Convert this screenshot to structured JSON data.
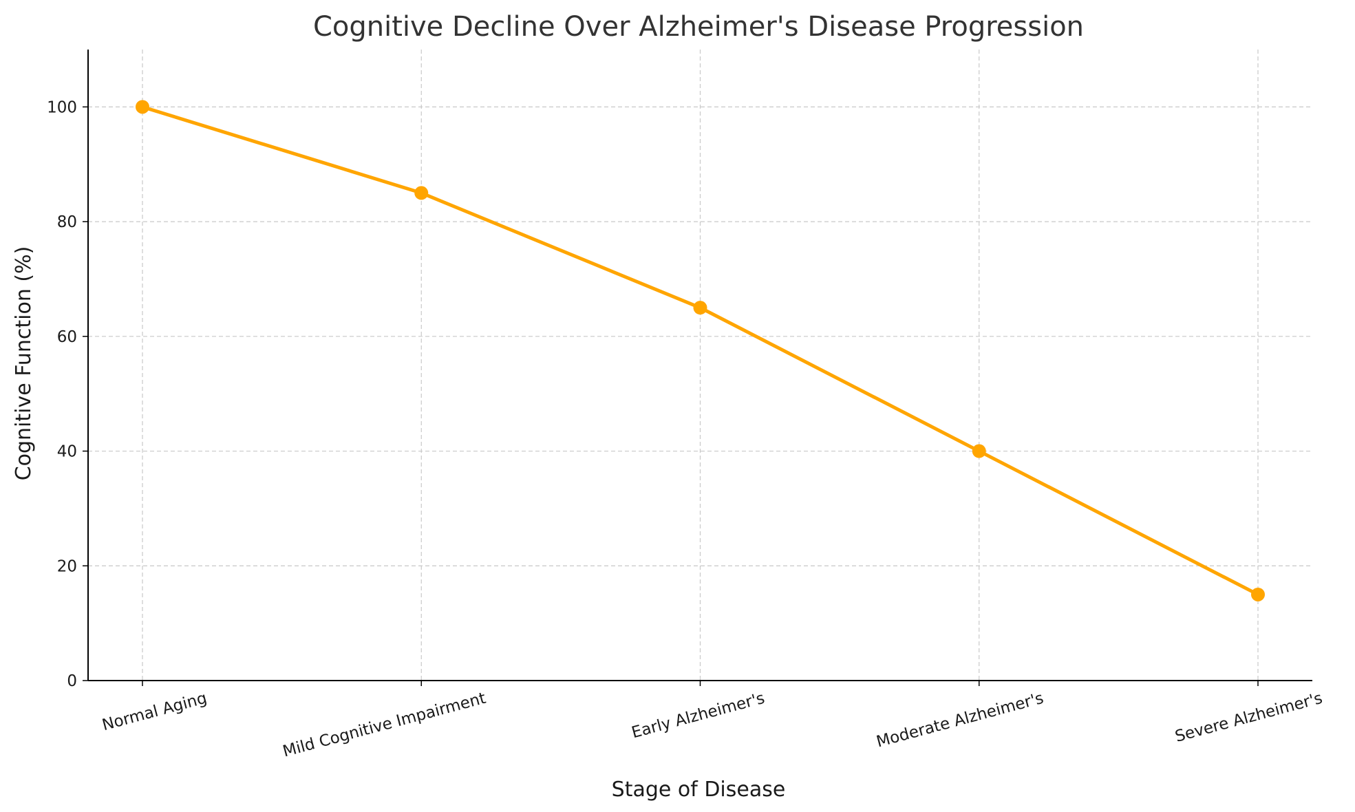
{
  "chart_data": {
    "type": "line",
    "title": "Cognitive Decline Over Alzheimer's Disease Progression",
    "xlabel": "Stage of Disease",
    "ylabel": "Cognitive Function (%)",
    "categories": [
      "Normal Aging",
      "Mild Cognitive Impairment",
      "Early Alzheimer's",
      "Moderate Alzheimer's",
      "Severe Alzheimer's"
    ],
    "series": [
      {
        "values": [
          100,
          85,
          65,
          40,
          15
        ],
        "color": "#FFA500"
      }
    ],
    "ylim": [
      0,
      110
    ],
    "yticks": [
      0,
      20,
      40,
      60,
      80,
      100
    ],
    "grid": true,
    "marker": "circle"
  }
}
